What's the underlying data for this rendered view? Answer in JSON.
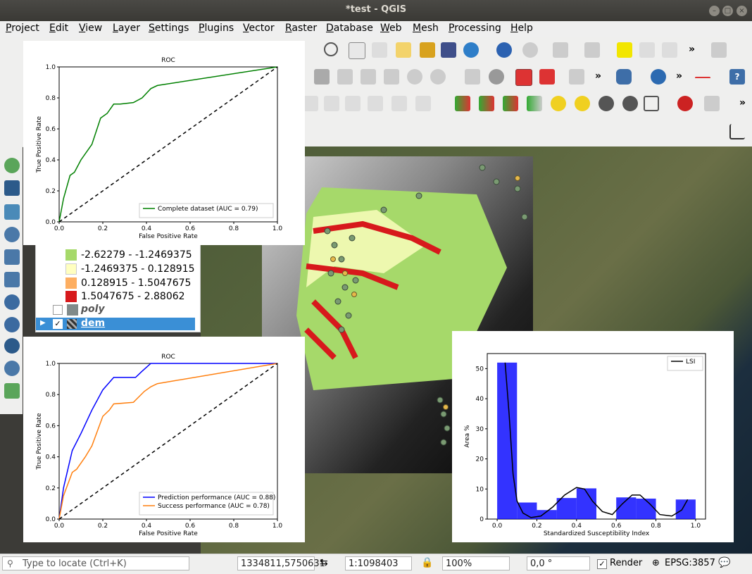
{
  "window": {
    "title": "*test - QGIS"
  },
  "menu": [
    "Project",
    "Edit",
    "View",
    "Layer",
    "Settings",
    "Plugins",
    "Vector",
    "Raster",
    "Database",
    "Web",
    "Mesh",
    "Processing",
    "Help"
  ],
  "layers": {
    "legend": [
      {
        "label": "-2.62279",
        "color": "#1a9641",
        "partial": true
      },
      {
        "label": "-2.62279 - -1.2469375",
        "color": "#a6d96a"
      },
      {
        "label": "-1.2469375 - 0.128915",
        "color": "#ffffc0"
      },
      {
        "label": "0.128915 - 1.5047675",
        "color": "#fdae61"
      },
      {
        "label": "1.5047675 - 2.88062",
        "color": "#d7191c"
      }
    ],
    "poly": {
      "name": "poly",
      "checked": false,
      "color": "#808a8a"
    },
    "dem": {
      "name": "dem",
      "checked": true
    }
  },
  "status": {
    "locate_placeholder": "Type to locate (Ctrl+K)",
    "coordinate": "1334811,5750631",
    "scale": "1:1098403",
    "magnifier": "100%",
    "rotation": "0,0 °",
    "render_label": "Render",
    "crs": "EPSG:3857"
  },
  "chart_data": [
    {
      "type": "line",
      "title": "ROC",
      "xlabel": "False Positive Rate",
      "ylabel": "True Positive Rate",
      "xlim": [
        0,
        1
      ],
      "ylim": [
        0,
        1
      ],
      "xticks": [
        "0.0",
        "0.2",
        "0.4",
        "0.6",
        "0.8",
        "1.0"
      ],
      "yticks": [
        "0.0",
        "0.2",
        "0.4",
        "0.6",
        "0.8",
        "1.0"
      ],
      "legend_position": "lower-right",
      "series": [
        {
          "name": "Complete dataset (AUC = 0.79)",
          "color": "#008000",
          "x": [
            0,
            0.02,
            0.05,
            0.07,
            0.1,
            0.15,
            0.19,
            0.22,
            0.25,
            0.28,
            0.34,
            0.38,
            0.42,
            0.45,
            1.0
          ],
          "y": [
            0,
            0.15,
            0.3,
            0.32,
            0.4,
            0.5,
            0.67,
            0.7,
            0.76,
            0.76,
            0.77,
            0.8,
            0.86,
            0.88,
            1.0
          ]
        },
        {
          "name": "",
          "color": "#000000",
          "dashed": true,
          "x": [
            0,
            1
          ],
          "y": [
            0,
            1
          ]
        }
      ]
    },
    {
      "type": "line",
      "title": "ROC",
      "xlabel": "False Positive Rate",
      "ylabel": "True Positive Rate",
      "xlim": [
        0,
        1
      ],
      "ylim": [
        0,
        1
      ],
      "xticks": [
        "0.0",
        "0.2",
        "0.4",
        "0.6",
        "0.8",
        "1.0"
      ],
      "yticks": [
        "0.0",
        "0.2",
        "0.4",
        "0.6",
        "0.8",
        "1.0"
      ],
      "legend_position": "lower-right",
      "series": [
        {
          "name": "Prediction performance (AUC = 0.88)",
          "color": "#0000ff",
          "x": [
            0,
            0.02,
            0.06,
            0.1,
            0.15,
            0.2,
            0.25,
            0.35,
            0.38,
            0.42,
            0.45,
            1.0
          ],
          "y": [
            0,
            0.2,
            0.44,
            0.55,
            0.7,
            0.83,
            0.91,
            0.91,
            0.95,
            1.0,
            1.0,
            1.0
          ]
        },
        {
          "name": "Success performance (AUC = 0.78)",
          "color": "#ff7f0e",
          "x": [
            0,
            0.02,
            0.06,
            0.08,
            0.12,
            0.15,
            0.2,
            0.23,
            0.25,
            0.34,
            0.39,
            0.42,
            0.45,
            1.0
          ],
          "y": [
            0,
            0.15,
            0.3,
            0.32,
            0.4,
            0.47,
            0.66,
            0.7,
            0.74,
            0.75,
            0.82,
            0.85,
            0.87,
            1.0
          ]
        },
        {
          "name": "",
          "color": "#000000",
          "dashed": true,
          "x": [
            0,
            1
          ],
          "y": [
            0,
            1
          ]
        }
      ]
    },
    {
      "type": "bar",
      "title": "",
      "xlabel": "Standardized Susceptibility Index",
      "ylabel": "Area %",
      "xlim": [
        -0.05,
        1.05
      ],
      "ylim": [
        0,
        55
      ],
      "xticks": [
        "0.0",
        "0.2",
        "0.4",
        "0.6",
        "0.8",
        "1.0"
      ],
      "yticks": [
        "0",
        "10",
        "20",
        "30",
        "40",
        "50"
      ],
      "legend_position": "top-right",
      "bar_color": "#0000ff",
      "bins": [
        {
          "x0": 0.0,
          "x1": 0.1,
          "value": 52
        },
        {
          "x0": 0.1,
          "x1": 0.2,
          "value": 5.5
        },
        {
          "x0": 0.2,
          "x1": 0.3,
          "value": 3
        },
        {
          "x0": 0.3,
          "x1": 0.4,
          "value": 7
        },
        {
          "x0": 0.4,
          "x1": 0.5,
          "value": 10.2
        },
        {
          "x0": 0.5,
          "x1": 0.6,
          "value": 0
        },
        {
          "x0": 0.6,
          "x1": 0.7,
          "value": 7.2
        },
        {
          "x0": 0.7,
          "x1": 0.8,
          "value": 6.8
        },
        {
          "x0": 0.8,
          "x1": 0.9,
          "value": 0
        },
        {
          "x0": 0.9,
          "x1": 1.0,
          "value": 6.5
        }
      ],
      "series": [
        {
          "name": "LSI",
          "color": "#000000",
          "x": [
            0.04,
            0.06,
            0.08,
            0.1,
            0.13,
            0.17,
            0.22,
            0.28,
            0.34,
            0.4,
            0.44,
            0.48,
            0.53,
            0.58,
            0.63,
            0.68,
            0.72,
            0.77,
            0.82,
            0.88,
            0.93,
            0.96
          ],
          "y": [
            52,
            35,
            15,
            6,
            2,
            0.5,
            1,
            4,
            8,
            10.5,
            10,
            6,
            2.5,
            1.5,
            5,
            8,
            8,
            5,
            1.5,
            1,
            3,
            6.5
          ]
        }
      ]
    }
  ]
}
